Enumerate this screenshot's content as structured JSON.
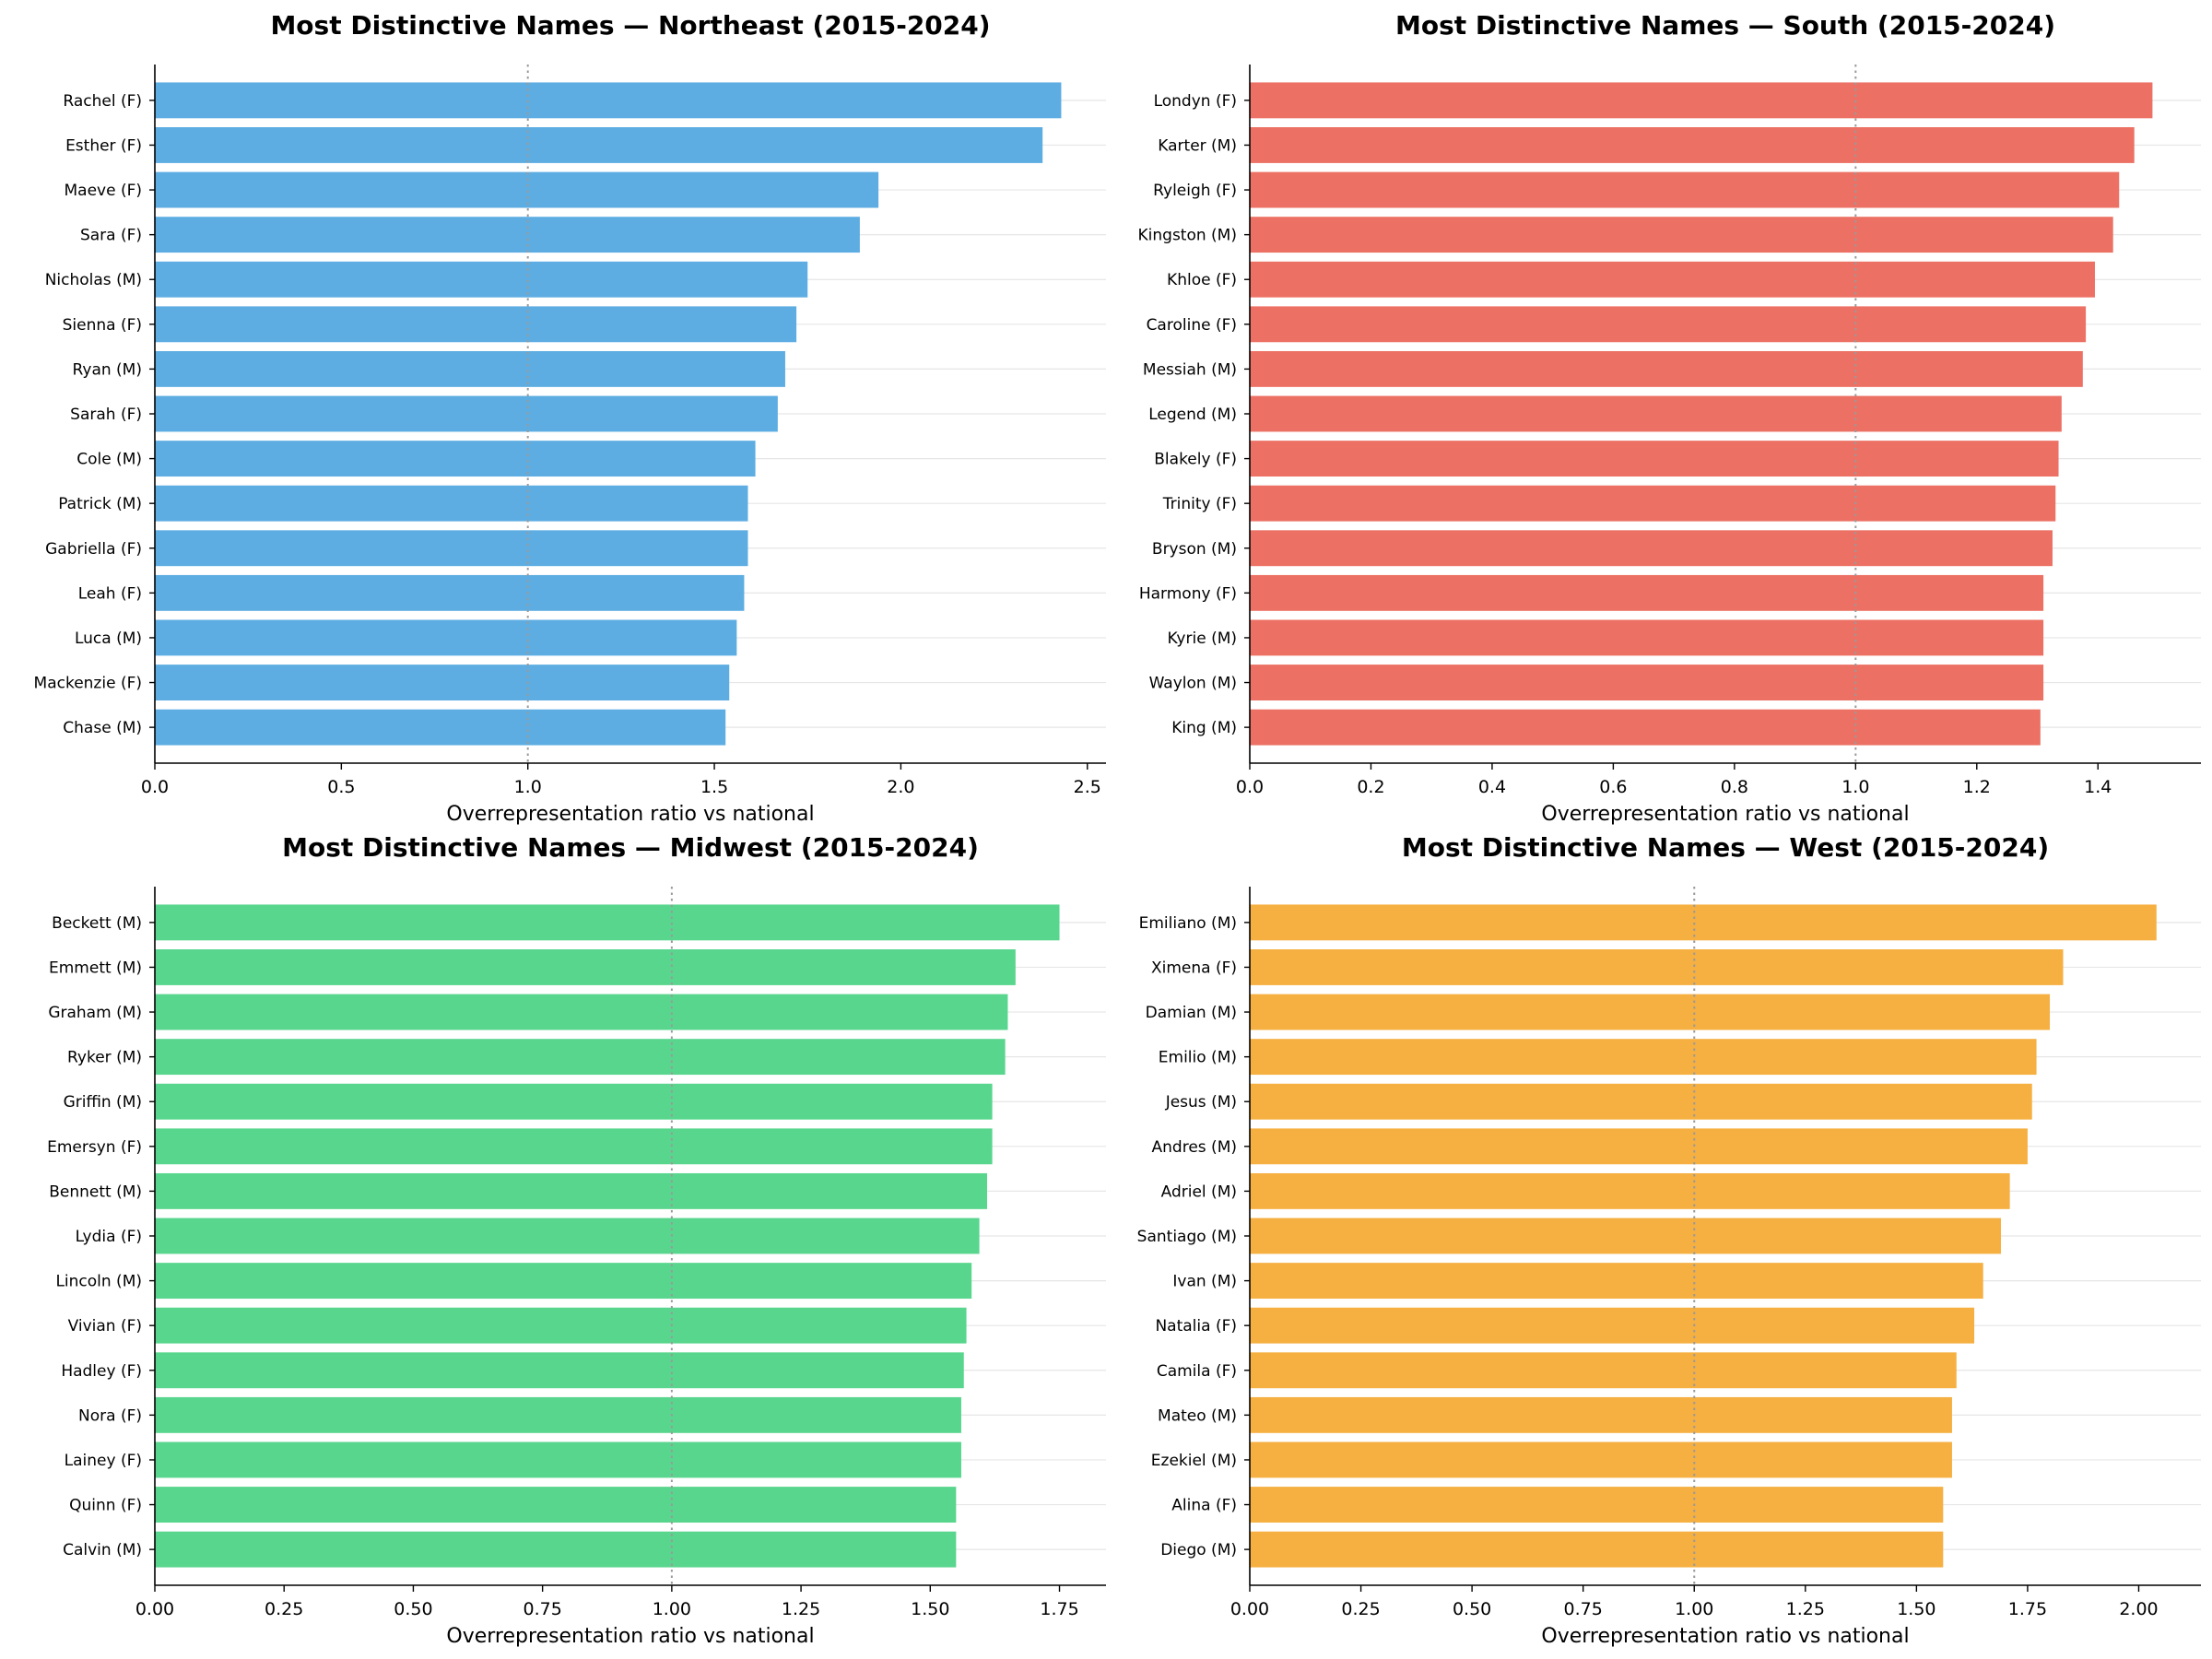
{
  "chart_data": [
    {
      "type": "bar",
      "orientation": "horizontal",
      "title": "Most Distinctive Names — Northeast (2015-2024)",
      "xlabel": "Overrepresentation ratio vs national",
      "ylabel": "",
      "color": "#5DADE2",
      "xlim": [
        0,
        2.55
      ],
      "xticks": [
        0.0,
        0.5,
        1.0,
        1.5,
        2.0,
        2.5
      ],
      "xtick_labels": [
        "0.0",
        "0.5",
        "1.0",
        "1.5",
        "2.0",
        "2.5"
      ],
      "reference_line": 1.0,
      "grid": "horizontal",
      "categories": [
        "Rachel (F)",
        "Esther (F)",
        "Maeve (F)",
        "Sara (F)",
        "Nicholas (M)",
        "Sienna (F)",
        "Ryan (M)",
        "Sarah (F)",
        "Cole (M)",
        "Patrick (M)",
        "Gabriella (F)",
        "Leah (F)",
        "Luca (M)",
        "Mackenzie (F)",
        "Chase (M)"
      ],
      "values": [
        2.43,
        2.38,
        1.94,
        1.89,
        1.75,
        1.72,
        1.69,
        1.67,
        1.61,
        1.59,
        1.59,
        1.58,
        1.56,
        1.54,
        1.53
      ]
    },
    {
      "type": "bar",
      "orientation": "horizontal",
      "title": "Most Distinctive Names — South (2015-2024)",
      "xlabel": "Overrepresentation ratio vs national",
      "ylabel": "",
      "color": "#EC7063",
      "xlim": [
        0,
        1.57
      ],
      "xticks": [
        0.0,
        0.2,
        0.4,
        0.6,
        0.8,
        1.0,
        1.2,
        1.4
      ],
      "xtick_labels": [
        "0.0",
        "0.2",
        "0.4",
        "0.6",
        "0.8",
        "1.0",
        "1.2",
        "1.4"
      ],
      "reference_line": 1.0,
      "grid": "horizontal",
      "categories": [
        "Londyn (F)",
        "Karter (M)",
        "Ryleigh (F)",
        "Kingston (M)",
        "Khloe (F)",
        "Caroline (F)",
        "Messiah (M)",
        "Legend (M)",
        "Blakely (F)",
        "Trinity (F)",
        "Bryson (M)",
        "Harmony (F)",
        "Kyrie (M)",
        "Waylon (M)",
        "King (M)"
      ],
      "values": [
        1.49,
        1.46,
        1.435,
        1.425,
        1.395,
        1.38,
        1.375,
        1.34,
        1.335,
        1.33,
        1.325,
        1.31,
        1.31,
        1.31,
        1.305
      ]
    },
    {
      "type": "bar",
      "orientation": "horizontal",
      "title": "Most Distinctive Names — Midwest (2015-2024)",
      "xlabel": "Overrepresentation ratio vs national",
      "ylabel": "",
      "color": "#58D68D",
      "xlim": [
        0,
        1.84
      ],
      "xticks": [
        0.0,
        0.25,
        0.5,
        0.75,
        1.0,
        1.25,
        1.5,
        1.75
      ],
      "xtick_labels": [
        "0.00",
        "0.25",
        "0.50",
        "0.75",
        "1.00",
        "1.25",
        "1.50",
        "1.75"
      ],
      "reference_line": 1.0,
      "grid": "horizontal",
      "categories": [
        "Beckett (M)",
        "Emmett (M)",
        "Graham (M)",
        "Ryker (M)",
        "Griffin (M)",
        "Emersyn (F)",
        "Bennett (M)",
        "Lydia (F)",
        "Lincoln (M)",
        "Vivian (F)",
        "Hadley (F)",
        "Nora (F)",
        "Lainey (F)",
        "Quinn (F)",
        "Calvin (M)"
      ],
      "values": [
        1.75,
        1.665,
        1.65,
        1.645,
        1.62,
        1.62,
        1.61,
        1.595,
        1.58,
        1.57,
        1.565,
        1.56,
        1.56,
        1.55,
        1.55
      ]
    },
    {
      "type": "bar",
      "orientation": "horizontal",
      "title": "Most Distinctive Names — West (2015-2024)",
      "xlabel": "Overrepresentation ratio vs national",
      "ylabel": "",
      "color": "#F5B041",
      "xlim": [
        0,
        2.14
      ],
      "xticks": [
        0.0,
        0.25,
        0.5,
        0.75,
        1.0,
        1.25,
        1.5,
        1.75,
        2.0
      ],
      "xtick_labels": [
        "0.00",
        "0.25",
        "0.50",
        "0.75",
        "1.00",
        "1.25",
        "1.50",
        "1.75",
        "2.00"
      ],
      "reference_line": 1.0,
      "grid": "horizontal",
      "categories": [
        "Emiliano (M)",
        "Ximena (F)",
        "Damian (M)",
        "Emilio (M)",
        "Jesus (M)",
        "Andres (M)",
        "Adriel (M)",
        "Santiago (M)",
        "Ivan (M)",
        "Natalia (F)",
        "Camila (F)",
        "Mateo (M)",
        "Ezekiel (M)",
        "Alina (F)",
        "Diego (M)"
      ],
      "values": [
        2.04,
        1.83,
        1.8,
        1.77,
        1.76,
        1.75,
        1.71,
        1.69,
        1.65,
        1.63,
        1.59,
        1.58,
        1.58,
        1.56,
        1.56
      ]
    }
  ]
}
